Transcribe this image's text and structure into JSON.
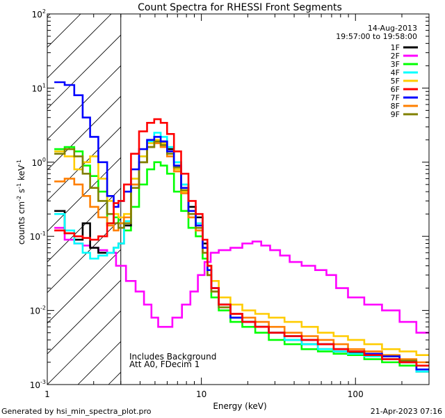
{
  "chart_data": {
    "type": "line",
    "title": "Count Spectra for RHESSI Front Segments",
    "xlabel": "Energy (keV)",
    "ylabel": {
      "base": "counts cm",
      "exp1": "-2",
      "mid1": " s",
      "exp2": "-1",
      "mid2": " keV",
      "exp3": "-1"
    },
    "xscale": "log",
    "yscale": "log",
    "xlim": [
      1,
      300
    ],
    "ylim": [
      0.001,
      100
    ],
    "x_ticks": [
      {
        "value": 1,
        "label": "1"
      },
      {
        "value": 10,
        "label": "10"
      },
      {
        "value": 100,
        "label": "100"
      }
    ],
    "y_ticks": [
      {
        "value": 0.001,
        "base": "10",
        "exp": "-3"
      },
      {
        "value": 0.01,
        "base": "10",
        "exp": "-2"
      },
      {
        "value": 0.1,
        "base": "10",
        "exp": "-1"
      },
      {
        "value": 1,
        "base": "10",
        "exp": "0"
      },
      {
        "value": 10,
        "base": "10",
        "exp": "1"
      },
      {
        "value": 100,
        "base": "10",
        "exp": "2"
      }
    ],
    "date": "14-Aug-2013",
    "time_range": "19:57:00 to 19:58:00",
    "hatched_region_max_energy": 3,
    "annotations": [
      "Includes Background",
      "Att A0, FDecim 1"
    ],
    "footer_left": "Generated by hsi_min_spectra_plot.pro",
    "footer_right": "21-Apr-2023 07:16",
    "series": [
      {
        "name": "1F",
        "color": "#000000",
        "x": [
          1.2,
          1.4,
          1.6,
          1.8,
          2.0,
          2.3,
          2.6,
          2.8,
          3.0,
          3.3,
          3.7,
          4.2,
          4.7,
          5.2,
          5.7,
          6.3,
          7.0,
          7.8,
          8.7,
          9.7,
          10.7,
          11.2,
          12,
          14,
          17,
          20,
          25,
          30,
          40,
          50,
          65,
          80,
          100,
          130,
          170,
          220,
          280
        ],
        "y": [
          0.22,
          0.11,
          0.09,
          0.15,
          0.07,
          0.06,
          0.06,
          0.07,
          0.08,
          0.14,
          0.5,
          1.0,
          1.6,
          2.0,
          1.9,
          1.5,
          1.0,
          0.5,
          0.25,
          0.18,
          0.08,
          0.04,
          0.02,
          0.012,
          0.009,
          0.007,
          0.006,
          0.005,
          0.004,
          0.0035,
          0.003,
          0.0028,
          0.0027,
          0.0025,
          0.0022,
          0.002,
          0.0015
        ]
      },
      {
        "name": "2F",
        "color": "#ff00ff",
        "x": [
          1.2,
          1.4,
          1.6,
          1.8,
          2.0,
          2.3,
          2.6,
          3.0,
          3.5,
          4.0,
          4.5,
          5.0,
          5.5,
          6.0,
          7.0,
          8.0,
          9.0,
          10.0,
          11.0,
          12,
          14,
          17,
          20,
          23,
          26,
          30,
          35,
          40,
          50,
          60,
          70,
          80,
          100,
          130,
          170,
          220,
          280
        ],
        "y": [
          0.13,
          0.09,
          0.08,
          0.075,
          0.07,
          0.065,
          0.06,
          0.04,
          0.025,
          0.018,
          0.012,
          0.008,
          0.006,
          0.006,
          0.008,
          0.012,
          0.018,
          0.03,
          0.045,
          0.06,
          0.065,
          0.07,
          0.08,
          0.085,
          0.075,
          0.065,
          0.055,
          0.045,
          0.04,
          0.035,
          0.03,
          0.02,
          0.015,
          0.012,
          0.01,
          0.007,
          0.005
        ]
      },
      {
        "name": "3F",
        "color": "#00ff00",
        "x": [
          1.2,
          1.4,
          1.6,
          1.8,
          2.0,
          2.3,
          2.6,
          2.8,
          3.0,
          3.3,
          3.7,
          4.2,
          4.7,
          5.2,
          5.7,
          6.3,
          7.0,
          7.8,
          8.7,
          9.7,
          10.7,
          11.2,
          12,
          14,
          17,
          20,
          25,
          30,
          40,
          50,
          65,
          80,
          100,
          130,
          170,
          220,
          280
        ],
        "y": [
          1.5,
          1.6,
          1.4,
          0.9,
          0.65,
          0.4,
          0.15,
          0.18,
          0.15,
          0.12,
          0.25,
          0.5,
          0.8,
          1.0,
          0.9,
          0.7,
          0.4,
          0.22,
          0.13,
          0.1,
          0.05,
          0.03,
          0.015,
          0.01,
          0.007,
          0.006,
          0.005,
          0.004,
          0.0035,
          0.003,
          0.0028,
          0.0026,
          0.0025,
          0.0022,
          0.002,
          0.0018,
          0.0015
        ]
      },
      {
        "name": "4F",
        "color": "#00ffff",
        "x": [
          1.2,
          1.4,
          1.6,
          1.8,
          2.0,
          2.3,
          2.6,
          2.8,
          3.0,
          3.3,
          3.7,
          4.2,
          4.7,
          5.2,
          5.7,
          6.3,
          7.0,
          7.8,
          8.7,
          9.7,
          10.7,
          11.2,
          12,
          14,
          17,
          20,
          25,
          30,
          40,
          50,
          65,
          80,
          100,
          130,
          170,
          220,
          280
        ],
        "y": [
          0.2,
          0.12,
          0.08,
          0.06,
          0.05,
          0.055,
          0.06,
          0.07,
          0.08,
          0.16,
          0.6,
          1.2,
          1.9,
          2.5,
          2.2,
          1.6,
          1.0,
          0.5,
          0.22,
          0.15,
          0.07,
          0.035,
          0.02,
          0.011,
          0.008,
          0.007,
          0.006,
          0.005,
          0.004,
          0.0035,
          0.003,
          0.0028,
          0.0026,
          0.0024,
          0.0022,
          0.002,
          0.0015
        ]
      },
      {
        "name": "5F",
        "color": "#ffcc00",
        "x": [
          1.2,
          1.4,
          1.6,
          1.8,
          2.0,
          2.3,
          2.6,
          2.8,
          3.0,
          3.3,
          3.7,
          4.2,
          4.7,
          5.2,
          5.7,
          6.3,
          7.0,
          7.8,
          8.7,
          9.7,
          10.7,
          11.2,
          12,
          14,
          17,
          20,
          25,
          30,
          40,
          50,
          65,
          80,
          100,
          130,
          170,
          220,
          280
        ],
        "y": [
          1.4,
          1.2,
          0.8,
          1.0,
          1.2,
          0.6,
          0.3,
          0.2,
          0.18,
          0.2,
          0.6,
          1.2,
          1.8,
          2.0,
          1.8,
          1.3,
          0.8,
          0.4,
          0.18,
          0.12,
          0.06,
          0.04,
          0.025,
          0.015,
          0.012,
          0.01,
          0.009,
          0.008,
          0.007,
          0.006,
          0.005,
          0.0045,
          0.004,
          0.0035,
          0.003,
          0.0028,
          0.0025
        ]
      },
      {
        "name": "6F",
        "color": "#ff0000",
        "x": [
          1.2,
          1.4,
          1.6,
          1.8,
          2.0,
          2.3,
          2.6,
          2.8,
          3.0,
          3.3,
          3.7,
          4.2,
          4.7,
          5.2,
          5.7,
          6.3,
          7.0,
          7.8,
          8.7,
          9.7,
          10.7,
          11.2,
          12,
          14,
          17,
          20,
          25,
          30,
          40,
          50,
          65,
          80,
          100,
          130,
          170,
          220,
          280
        ],
        "y": [
          0.12,
          0.11,
          0.1,
          0.095,
          0.09,
          0.1,
          0.15,
          0.28,
          0.3,
          0.5,
          1.3,
          2.6,
          3.4,
          3.8,
          3.4,
          2.4,
          1.4,
          0.7,
          0.3,
          0.2,
          0.09,
          0.04,
          0.02,
          0.012,
          0.009,
          0.007,
          0.006,
          0.005,
          0.0045,
          0.004,
          0.0035,
          0.003,
          0.0028,
          0.0025,
          0.0022,
          0.002,
          0.0018
        ]
      },
      {
        "name": "7F",
        "color": "#0000ff",
        "x": [
          1.2,
          1.4,
          1.6,
          1.8,
          2.0,
          2.3,
          2.6,
          2.8,
          3.0,
          3.3,
          3.7,
          4.2,
          4.7,
          5.2,
          5.7,
          6.3,
          7.0,
          7.8,
          8.7,
          9.7,
          10.7,
          11.2,
          12,
          14,
          17,
          20,
          25,
          30,
          40,
          50,
          65,
          80,
          100,
          130,
          170,
          220,
          280
        ],
        "y": [
          12,
          11,
          8,
          4,
          2.2,
          1.0,
          0.35,
          0.25,
          0.3,
          0.4,
          0.8,
          1.5,
          2.0,
          2.2,
          1.9,
          1.4,
          0.9,
          0.45,
          0.22,
          0.14,
          0.07,
          0.035,
          0.02,
          0.012,
          0.008,
          0.007,
          0.006,
          0.005,
          0.0045,
          0.004,
          0.0035,
          0.003,
          0.0028,
          0.0026,
          0.0024,
          0.002,
          0.0016
        ]
      },
      {
        "name": "8F",
        "color": "#ff7f00",
        "x": [
          1.2,
          1.4,
          1.6,
          1.8,
          2.0,
          2.3,
          2.6,
          2.8,
          3.0,
          3.3,
          3.7,
          4.2,
          4.7,
          5.2,
          5.7,
          6.3,
          7.0,
          7.8,
          8.7,
          9.7,
          10.7,
          11.2,
          12,
          14,
          17,
          20,
          25,
          30,
          40,
          50,
          65,
          80,
          100,
          130,
          170,
          220,
          280
        ],
        "y": [
          0.55,
          0.6,
          0.5,
          0.35,
          0.25,
          0.18,
          0.14,
          0.12,
          0.15,
          0.18,
          0.5,
          1.0,
          1.6,
          1.8,
          1.6,
          1.2,
          0.75,
          0.38,
          0.18,
          0.12,
          0.06,
          0.03,
          0.018,
          0.012,
          0.009,
          0.008,
          0.007,
          0.006,
          0.005,
          0.0045,
          0.004,
          0.0035,
          0.003,
          0.0028,
          0.0025,
          0.0022,
          0.002
        ]
      },
      {
        "name": "9F",
        "color": "#808000",
        "x": [
          1.2,
          1.4,
          1.6,
          1.8,
          2.0,
          2.3,
          2.6,
          2.8,
          3.0,
          3.3,
          3.7,
          4.2,
          4.7,
          5.2,
          5.7,
          6.3,
          7.0,
          7.8,
          8.7,
          9.7,
          10.7,
          11.2,
          12,
          14,
          17,
          20,
          25,
          30,
          40,
          50,
          65,
          80,
          100,
          130,
          170,
          220,
          280
        ],
        "y": [
          1.3,
          1.5,
          1.2,
          0.7,
          0.45,
          0.3,
          0.2,
          0.15,
          0.13,
          0.15,
          0.45,
          1.0,
          1.6,
          1.9,
          1.7,
          1.3,
          0.85,
          0.42,
          0.2,
          0.13,
          0.06,
          0.03,
          0.018,
          0.011,
          0.008,
          0.007,
          0.006,
          0.005,
          0.0045,
          0.004,
          0.0035,
          0.003,
          0.0028,
          0.0026,
          0.0024,
          0.0021,
          0.0018
        ]
      }
    ]
  }
}
